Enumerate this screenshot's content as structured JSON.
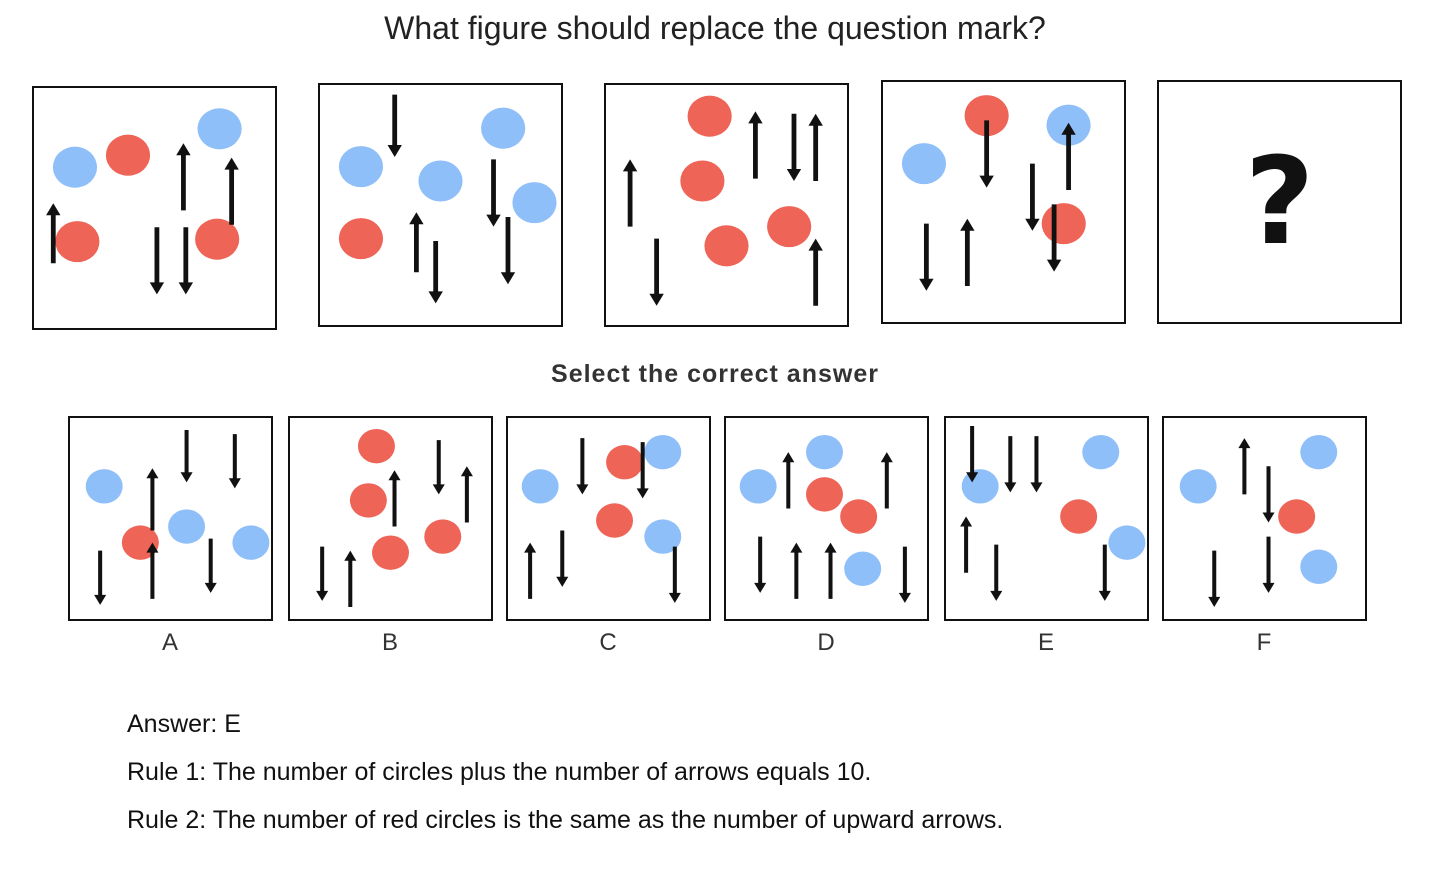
{
  "question": "What figure should replace the question mark?",
  "prompt": "Select the correct answer",
  "colors": {
    "red": "#ee6457",
    "blue": "#8fbff9",
    "ink": "#111111"
  },
  "sequence": [
    {
      "circles": [
        [
          "blue",
          0.17,
          0.33
        ],
        [
          "red",
          0.39,
          0.28
        ],
        [
          "blue",
          0.77,
          0.17
        ],
        [
          "red",
          0.18,
          0.64
        ],
        [
          "red",
          0.76,
          0.63
        ]
      ],
      "arrows": [
        [
          "up",
          0.08,
          0.73,
          0.48
        ],
        [
          "up",
          0.62,
          0.51,
          0.23
        ],
        [
          "up",
          0.82,
          0.57,
          0.29
        ],
        [
          "down",
          0.51,
          0.58,
          0.86
        ],
        [
          "down",
          0.63,
          0.58,
          0.86
        ]
      ]
    },
    {
      "circles": [
        [
          "blue",
          0.76,
          0.18
        ],
        [
          "blue",
          0.17,
          0.34
        ],
        [
          "blue",
          0.5,
          0.4
        ],
        [
          "blue",
          0.89,
          0.49
        ],
        [
          "red",
          0.17,
          0.64
        ]
      ],
      "arrows": [
        [
          "down",
          0.31,
          0.04,
          0.3
        ],
        [
          "down",
          0.72,
          0.31,
          0.59
        ],
        [
          "up",
          0.4,
          0.78,
          0.53
        ],
        [
          "down",
          0.48,
          0.65,
          0.91
        ],
        [
          "down",
          0.78,
          0.55,
          0.83
        ]
      ]
    },
    {
      "circles": [
        [
          "red",
          0.43,
          0.13
        ],
        [
          "red",
          0.4,
          0.4
        ],
        [
          "red",
          0.76,
          0.59
        ],
        [
          "red",
          0.5,
          0.67
        ]
      ],
      "arrows": [
        [
          "up",
          0.1,
          0.59,
          0.31
        ],
        [
          "up",
          0.62,
          0.39,
          0.11
        ],
        [
          "down",
          0.78,
          0.12,
          0.4
        ],
        [
          "up",
          0.87,
          0.4,
          0.12
        ],
        [
          "up",
          0.87,
          0.92,
          0.64
        ],
        [
          "down",
          0.21,
          0.64,
          0.92
        ]
      ]
    },
    {
      "circles": [
        [
          "red",
          0.43,
          0.14
        ],
        [
          "blue",
          0.77,
          0.18
        ],
        [
          "blue",
          0.17,
          0.34
        ],
        [
          "red",
          0.75,
          0.59
        ]
      ],
      "arrows": [
        [
          "down",
          0.43,
          0.16,
          0.44
        ],
        [
          "up",
          0.77,
          0.45,
          0.17
        ],
        [
          "down",
          0.62,
          0.34,
          0.62
        ],
        [
          "down",
          0.71,
          0.51,
          0.79
        ],
        [
          "down",
          0.18,
          0.59,
          0.87
        ],
        [
          "up",
          0.35,
          0.85,
          0.57
        ]
      ]
    }
  ],
  "options": [
    {
      "label": "A",
      "circles": [
        [
          "blue",
          0.17,
          0.34
        ],
        [
          "red",
          0.35,
          0.62
        ],
        [
          "blue",
          0.58,
          0.54
        ],
        [
          "blue",
          0.9,
          0.62
        ]
      ],
      "arrows": [
        [
          "up",
          0.41,
          0.56,
          0.25
        ],
        [
          "down",
          0.58,
          0.06,
          0.32
        ],
        [
          "down",
          0.82,
          0.08,
          0.35
        ],
        [
          "up",
          0.41,
          0.9,
          0.62
        ],
        [
          "down",
          0.15,
          0.66,
          0.93
        ],
        [
          "down",
          0.7,
          0.6,
          0.87
        ]
      ]
    },
    {
      "label": "B",
      "circles": [
        [
          "red",
          0.43,
          0.14
        ],
        [
          "red",
          0.39,
          0.41
        ],
        [
          "red",
          0.5,
          0.67
        ],
        [
          "red",
          0.76,
          0.59
        ]
      ],
      "arrows": [
        [
          "up",
          0.52,
          0.54,
          0.26
        ],
        [
          "down",
          0.74,
          0.11,
          0.38
        ],
        [
          "up",
          0.88,
          0.52,
          0.24
        ],
        [
          "down",
          0.16,
          0.64,
          0.91
        ],
        [
          "up",
          0.3,
          0.94,
          0.66
        ]
      ]
    },
    {
      "label": "C",
      "circles": [
        [
          "blue",
          0.16,
          0.34
        ],
        [
          "red",
          0.58,
          0.22
        ],
        [
          "blue",
          0.77,
          0.17
        ],
        [
          "red",
          0.53,
          0.51
        ],
        [
          "blue",
          0.77,
          0.59
        ]
      ],
      "arrows": [
        [
          "down",
          0.37,
          0.1,
          0.38
        ],
        [
          "down",
          0.67,
          0.12,
          0.4
        ],
        [
          "up",
          0.11,
          0.9,
          0.62
        ],
        [
          "down",
          0.27,
          0.56,
          0.84
        ],
        [
          "down",
          0.83,
          0.64,
          0.92
        ]
      ]
    },
    {
      "label": "D",
      "circles": [
        [
          "blue",
          0.49,
          0.17
        ],
        [
          "blue",
          0.16,
          0.34
        ],
        [
          "red",
          0.49,
          0.38
        ],
        [
          "red",
          0.66,
          0.49
        ],
        [
          "blue",
          0.68,
          0.75
        ]
      ],
      "arrows": [
        [
          "up",
          0.31,
          0.45,
          0.17
        ],
        [
          "up",
          0.8,
          0.45,
          0.17
        ],
        [
          "down",
          0.17,
          0.59,
          0.87
        ],
        [
          "up",
          0.35,
          0.9,
          0.62
        ],
        [
          "up",
          0.52,
          0.9,
          0.62
        ],
        [
          "down",
          0.89,
          0.64,
          0.92
        ]
      ]
    },
    {
      "label": "E",
      "circles": [
        [
          "blue",
          0.17,
          0.34
        ],
        [
          "blue",
          0.77,
          0.17
        ],
        [
          "red",
          0.66,
          0.49
        ],
        [
          "blue",
          0.9,
          0.62
        ]
      ],
      "arrows": [
        [
          "down",
          0.13,
          0.04,
          0.32
        ],
        [
          "down",
          0.32,
          0.09,
          0.37
        ],
        [
          "down",
          0.45,
          0.09,
          0.37
        ],
        [
          "up",
          0.1,
          0.77,
          0.49
        ],
        [
          "down",
          0.25,
          0.63,
          0.91
        ],
        [
          "down",
          0.79,
          0.63,
          0.91
        ]
      ]
    },
    {
      "label": "F",
      "circles": [
        [
          "blue",
          0.17,
          0.34
        ],
        [
          "blue",
          0.77,
          0.17
        ],
        [
          "red",
          0.66,
          0.49
        ],
        [
          "blue",
          0.77,
          0.74
        ]
      ],
      "arrows": [
        [
          "up",
          0.4,
          0.38,
          0.1
        ],
        [
          "down",
          0.52,
          0.24,
          0.52
        ],
        [
          "down",
          0.52,
          0.59,
          0.87
        ],
        [
          "down",
          0.25,
          0.66,
          0.94
        ]
      ]
    }
  ],
  "answer": "Answer: E",
  "rules": [
    "Rule 1: The number of circles plus the number of arrows equals 10.",
    "Rule 2: The number of red circles is the same as the number of upward arrows."
  ]
}
